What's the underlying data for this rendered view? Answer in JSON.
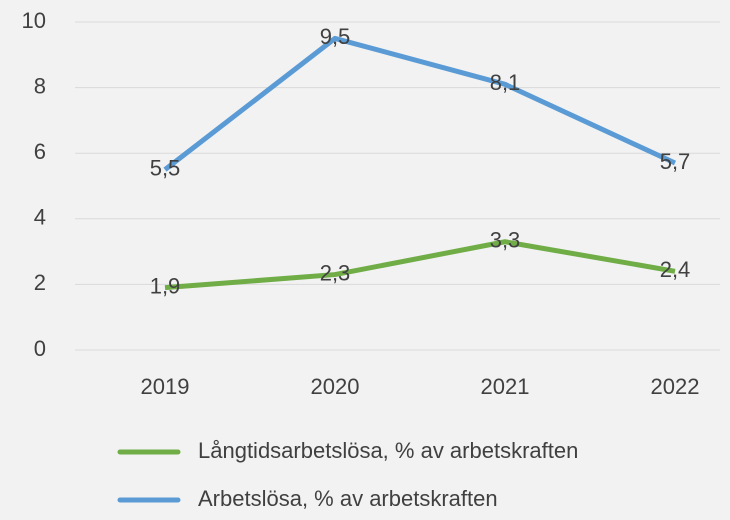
{
  "chart_data": {
    "type": "line",
    "categories": [
      "2019",
      "2020",
      "2021",
      "2022"
    ],
    "series": [
      {
        "name": "Långtidsarbetslösa, % av arbetskraften",
        "color": "#70ad47",
        "values": [
          1.9,
          2.3,
          3.3,
          2.4
        ],
        "value_labels": [
          "1,9",
          "2,3",
          "3,3",
          "2,4"
        ]
      },
      {
        "name": "Arbetslösa, % av arbetskraften",
        "color": "#5b9bd5",
        "values": [
          5.5,
          9.5,
          8.1,
          5.7
        ],
        "value_labels": [
          "5,5",
          "9,5",
          "8,1",
          "5,7"
        ]
      }
    ],
    "ylim": [
      0,
      10
    ],
    "yticks": [
      0,
      2,
      4,
      6,
      8,
      10
    ],
    "grid": true
  }
}
